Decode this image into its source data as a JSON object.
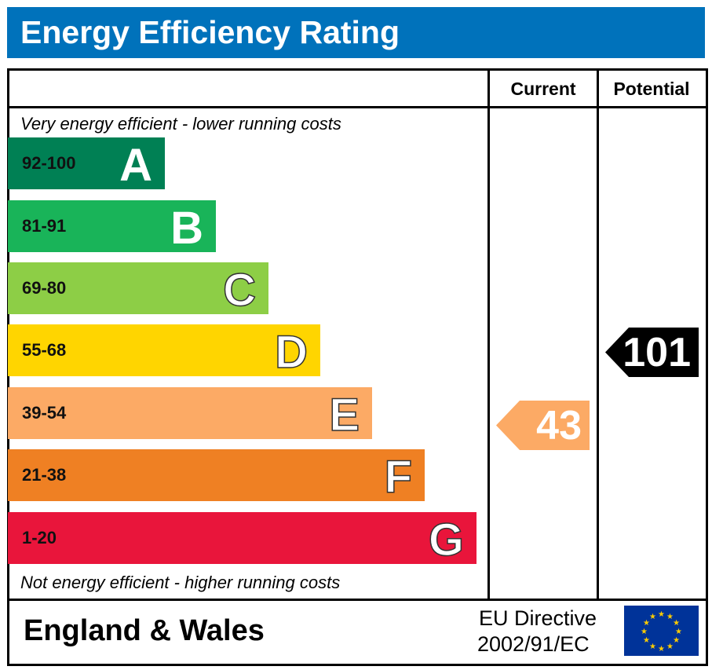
{
  "title": "Energy Efficiency Rating",
  "headers": {
    "current": "Current",
    "potential": "Potential"
  },
  "top_note": "Very energy efficient - lower running costs",
  "bottom_note": "Not energy efficient - higher running costs",
  "footer": {
    "region": "England & Wales",
    "directive_line1": "EU Directive",
    "directive_line2": "2002/91/EC"
  },
  "chart_data": {
    "type": "bar",
    "title": "Energy Efficiency Rating",
    "categories": [
      "A",
      "B",
      "C",
      "D",
      "E",
      "F",
      "G"
    ],
    "ranges": [
      "92-100",
      "81-91",
      "69-80",
      "55-68",
      "39-54",
      "21-38",
      "1-20"
    ],
    "colors": [
      "#008054",
      "#19b459",
      "#8dce46",
      "#ffd500",
      "#fcaa65",
      "#ef8023",
      "#e9153b"
    ],
    "current": {
      "value": "43",
      "color": "#fcaa65"
    },
    "potential": {
      "value": "101",
      "color": "#000000"
    }
  }
}
